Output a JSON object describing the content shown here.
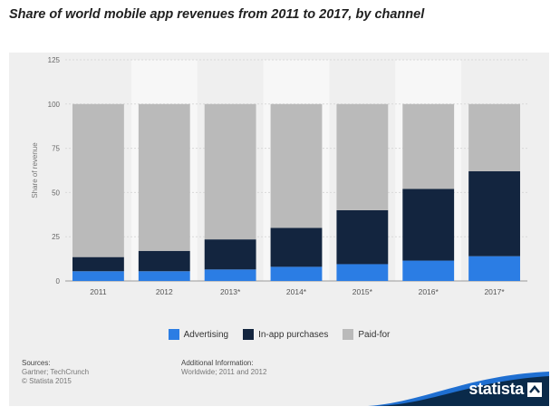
{
  "title": "Share of world mobile app revenues from 2011 to 2017, by channel",
  "chart_data": {
    "type": "bar",
    "stacked": true,
    "title": "Share of world mobile app revenues from 2011 to 2017, by channel",
    "xlabel": "",
    "ylabel": "Share of revenue",
    "ylim": [
      0,
      125
    ],
    "yticks": [
      0,
      25,
      50,
      75,
      100,
      125
    ],
    "categories": [
      "2011",
      "2012",
      "2013*",
      "2014*",
      "2015*",
      "2016*",
      "2017*"
    ],
    "series": [
      {
        "name": "Advertising",
        "color": "#2b7de4",
        "values": [
          5.5,
          5.5,
          6.5,
          8,
          9.5,
          11.5,
          14
        ]
      },
      {
        "name": "In-app purchases",
        "color": "#13253f",
        "values": [
          8,
          11.5,
          17,
          22,
          30.5,
          40.5,
          48
        ]
      },
      {
        "name": "Paid-for",
        "color": "#bababa",
        "values": [
          86.5,
          83,
          76.5,
          70,
          60,
          48,
          38
        ]
      }
    ],
    "legend_position": "bottom-center"
  },
  "sources": {
    "heading": "Sources:",
    "line1": "Gartner; TechCrunch",
    "line2": "© Statista 2015"
  },
  "additional_info": {
    "heading": "Additional Information:",
    "line1": "Worldwide; 2011 and 2012"
  },
  "brand": {
    "name": "statista",
    "color": "#0a2a4a",
    "accent": "#1f6fd1"
  }
}
